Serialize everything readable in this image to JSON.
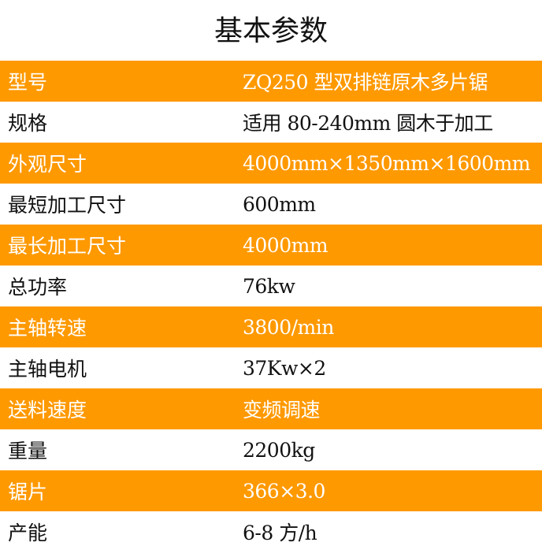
{
  "title": "基本参数",
  "colors": {
    "band": "#FF9900",
    "band_text": "#FFFFFF",
    "text": "#111111"
  },
  "rows": [
    {
      "label": "型号",
      "value": "ZQ250 型双排链原木多片锯"
    },
    {
      "label": "规格",
      "value": "适用 80-240mm 圆木于加工"
    },
    {
      "label": "外观尺寸",
      "value": "4000mm×1350mm×1600mm"
    },
    {
      "label": "最短加工尺寸",
      "value": "600mm"
    },
    {
      "label": "最长加工尺寸",
      "value": "4000mm"
    },
    {
      "label": "总功率",
      "value": "76kw"
    },
    {
      "label": "主轴转速",
      "value": "3800/min"
    },
    {
      "label": "主轴电机",
      "value": "37Kw×2"
    },
    {
      "label": "送料速度",
      "value": "变频调速"
    },
    {
      "label": "重量",
      "value": "2200kg"
    },
    {
      "label": "锯片",
      "value": "366×3.0"
    },
    {
      "label": "产能",
      "value": "6-8 方/h"
    }
  ]
}
